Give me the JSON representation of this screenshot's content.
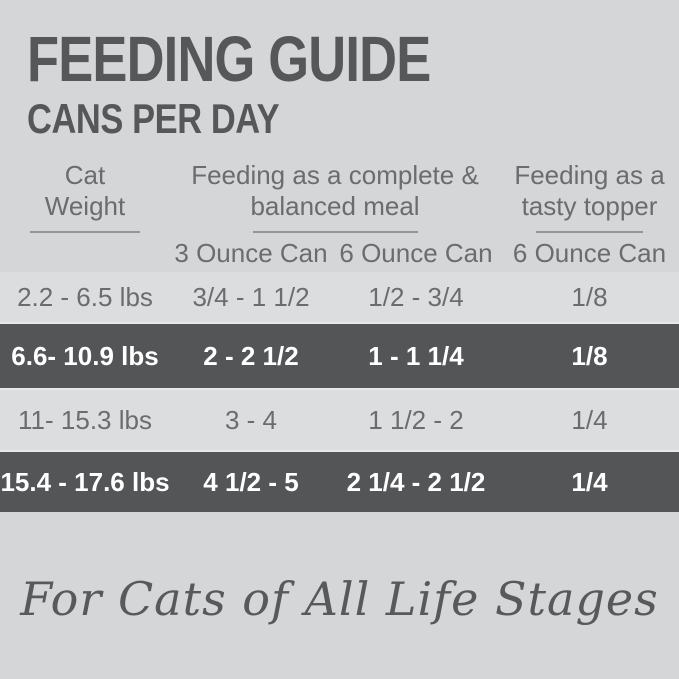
{
  "title": "FEEDING GUIDE",
  "subtitle": "CANS PER DAY",
  "table": {
    "col_groups": [
      {
        "line1": "Cat",
        "line2": "Weight"
      },
      {
        "line1": "Feeding as a complete &",
        "line2": "balanced meal"
      },
      {
        "line1": "Feeding as a",
        "line2": "tasty topper"
      }
    ],
    "sub_headers": [
      "3 Ounce Can",
      "6 Ounce Can",
      "6 Ounce Can"
    ],
    "rows": [
      {
        "weight": "2.2 - 6.5 lbs",
        "meal_3oz": "3/4 - 1 1/2",
        "meal_6oz": "1/2 - 3/4",
        "topper_6oz": "1/8",
        "highlight": false
      },
      {
        "weight": "6.6- 10.9 lbs",
        "meal_3oz": "2 - 2 1/2",
        "meal_6oz": "1 - 1 1/4",
        "topper_6oz": "1/8",
        "highlight": true
      },
      {
        "weight": "11- 15.3 lbs",
        "meal_3oz": "3 - 4",
        "meal_6oz": "1 1/2 - 2",
        "topper_6oz": "1/4",
        "highlight": false
      },
      {
        "weight": "15.4 - 17.6 lbs",
        "meal_3oz": "4 1/2 - 5",
        "meal_6oz": "2 1/4 - 2 1/2",
        "topper_6oz": "1/4",
        "highlight": true
      }
    ]
  },
  "footer": {
    "tagline": "For Cats of All Life Stages"
  },
  "colors": {
    "background": "#d5d6d8",
    "row_light": "#dcddde",
    "row_dark": "#545557",
    "title_text": "#565759",
    "body_text": "#6b6c6e",
    "row_dark_text": "#ffffff",
    "underline": "#939598"
  },
  "chart_data": {
    "type": "table",
    "title": "FEEDING GUIDE",
    "subtitle": "CANS PER DAY",
    "column_groups": [
      "Cat Weight",
      "Feeding as a complete & balanced meal",
      "Feeding as a tasty topper"
    ],
    "columns": [
      "Cat Weight",
      "3 Ounce Can (complete meal)",
      "6 Ounce Can (complete meal)",
      "6 Ounce Can (tasty topper)"
    ],
    "rows": [
      [
        "2.2 - 6.5 lbs",
        "3/4 - 1 1/2",
        "1/2 - 3/4",
        "1/8"
      ],
      [
        "6.6- 10.9 lbs",
        "2 - 2 1/2",
        "1 - 1 1/4",
        "1/8"
      ],
      [
        "11- 15.3 lbs",
        "3 - 4",
        "1 1/2 - 2",
        "1/4"
      ],
      [
        "15.4 - 17.6 lbs",
        "4 1/2 - 5",
        "2 1/4 - 2 1/2",
        "1/4"
      ]
    ],
    "footnote": "For Cats of All Life Stages"
  }
}
